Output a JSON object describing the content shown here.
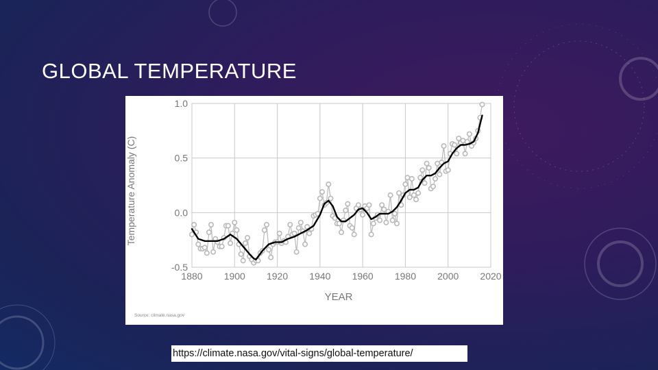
{
  "slide": {
    "title": "GLOBAL TEMPERATURE",
    "link": "https://climate.nasa.gov/vital-signs/global-temperature/"
  },
  "colors": {
    "background": "#2a1d5c",
    "annual_marker": "#b9b9b9",
    "smoothed_line": "#000000",
    "grid": "#c8c8c8"
  },
  "chart_data": {
    "type": "line",
    "xlabel": "YEAR",
    "ylabel": "Temperature Anomaly (C)",
    "source": "Source: climate.nasa.gov",
    "xlim": [
      1880,
      2020
    ],
    "ylim": [
      -0.5,
      1.0
    ],
    "x_ticks": [
      "1880",
      "1900",
      "1920",
      "1940",
      "1960",
      "1980",
      "2000",
      "2020"
    ],
    "y_ticks": [
      "1.0",
      "0.5",
      "0.0",
      "-0.5"
    ],
    "grid": true,
    "series": [
      {
        "style": "annual_markers",
        "x": [
          1880,
          1881,
          1882,
          1883,
          1884,
          1885,
          1886,
          1887,
          1888,
          1889,
          1890,
          1891,
          1892,
          1893,
          1894,
          1895,
          1896,
          1897,
          1898,
          1899,
          1900,
          1901,
          1902,
          1903,
          1904,
          1905,
          1906,
          1907,
          1908,
          1909,
          1910,
          1911,
          1912,
          1913,
          1914,
          1915,
          1916,
          1917,
          1918,
          1919,
          1920,
          1921,
          1922,
          1923,
          1924,
          1925,
          1926,
          1927,
          1928,
          1929,
          1930,
          1931,
          1932,
          1933,
          1934,
          1935,
          1936,
          1937,
          1938,
          1939,
          1940,
          1941,
          1942,
          1943,
          1944,
          1945,
          1946,
          1947,
          1948,
          1949,
          1950,
          1951,
          1952,
          1953,
          1954,
          1955,
          1956,
          1957,
          1958,
          1959,
          1960,
          1961,
          1962,
          1963,
          1964,
          1965,
          1966,
          1967,
          1968,
          1969,
          1970,
          1971,
          1972,
          1973,
          1974,
          1975,
          1976,
          1977,
          1978,
          1979,
          1980,
          1981,
          1982,
          1983,
          1984,
          1985,
          1986,
          1987,
          1988,
          1989,
          1990,
          1991,
          1992,
          1993,
          1994,
          1995,
          1996,
          1997,
          1998,
          1999,
          2000,
          2001,
          2002,
          2003,
          2004,
          2005,
          2006,
          2007,
          2008,
          2009,
          2010,
          2011,
          2012,
          2013,
          2014,
          2015,
          2016
        ],
        "y": [
          -0.2,
          -0.11,
          -0.18,
          -0.29,
          -0.33,
          -0.33,
          -0.32,
          -0.37,
          -0.18,
          -0.11,
          -0.36,
          -0.24,
          -0.27,
          -0.31,
          -0.31,
          -0.23,
          -0.12,
          -0.12,
          -0.28,
          -0.19,
          -0.09,
          -0.16,
          -0.29,
          -0.38,
          -0.44,
          -0.28,
          -0.23,
          -0.4,
          -0.43,
          -0.46,
          -0.44,
          -0.44,
          -0.37,
          -0.35,
          -0.16,
          -0.11,
          -0.34,
          -0.41,
          -0.29,
          -0.27,
          -0.27,
          -0.19,
          -0.28,
          -0.26,
          -0.27,
          -0.22,
          -0.11,
          -0.2,
          -0.19,
          -0.36,
          -0.14,
          -0.09,
          -0.17,
          -0.29,
          -0.13,
          -0.19,
          -0.15,
          -0.03,
          -0.02,
          -0.01,
          0.13,
          0.19,
          0.07,
          0.09,
          0.26,
          0.13,
          -0.03,
          -0.05,
          -0.1,
          -0.1,
          -0.18,
          -0.07,
          0.02,
          0.08,
          -0.12,
          -0.14,
          -0.2,
          0.04,
          0.07,
          0.03,
          -0.02,
          0.06,
          0.04,
          0.07,
          -0.2,
          -0.1,
          -0.05,
          -0.02,
          -0.07,
          0.07,
          0.03,
          -0.09,
          0.01,
          0.16,
          -0.07,
          -0.01,
          -0.1,
          0.18,
          0.07,
          0.16,
          0.26,
          0.32,
          0.14,
          0.31,
          0.16,
          0.12,
          0.18,
          0.32,
          0.39,
          0.27,
          0.45,
          0.41,
          0.22,
          0.24,
          0.31,
          0.45,
          0.35,
          0.46,
          0.61,
          0.38,
          0.39,
          0.54,
          0.63,
          0.62,
          0.54,
          0.68,
          0.64,
          0.66,
          0.54,
          0.65,
          0.72,
          0.61,
          0.64,
          0.68,
          0.75,
          0.87,
          0.99
        ]
      },
      {
        "style": "smoothed_line",
        "x": [
          1880,
          1883,
          1886,
          1889,
          1892,
          1895,
          1898,
          1901,
          1904,
          1907,
          1909,
          1910,
          1913,
          1916,
          1919,
          1922,
          1925,
          1928,
          1931,
          1934,
          1937,
          1940,
          1942,
          1944,
          1946,
          1948,
          1950,
          1952,
          1954,
          1956,
          1958,
          1960,
          1962,
          1964,
          1966,
          1968,
          1970,
          1972,
          1974,
          1976,
          1978,
          1980,
          1982,
          1984,
          1986,
          1988,
          1990,
          1992,
          1994,
          1996,
          1998,
          2000,
          2002,
          2004,
          2006,
          2008,
          2010,
          2012,
          2014,
          2016
        ],
        "y": [
          -0.15,
          -0.24,
          -0.26,
          -0.26,
          -0.26,
          -0.24,
          -0.2,
          -0.24,
          -0.31,
          -0.38,
          -0.42,
          -0.43,
          -0.35,
          -0.29,
          -0.27,
          -0.27,
          -0.24,
          -0.22,
          -0.19,
          -0.16,
          -0.12,
          -0.02,
          0.08,
          0.11,
          0.06,
          -0.04,
          -0.08,
          -0.08,
          -0.05,
          -0.02,
          0.03,
          0.04,
          0.0,
          -0.06,
          -0.04,
          -0.01,
          -0.01,
          -0.01,
          0.01,
          0.05,
          0.11,
          0.18,
          0.21,
          0.21,
          0.23,
          0.3,
          0.34,
          0.34,
          0.36,
          0.41,
          0.45,
          0.47,
          0.54,
          0.59,
          0.62,
          0.62,
          0.63,
          0.65,
          0.73,
          0.89
        ]
      }
    ]
  }
}
